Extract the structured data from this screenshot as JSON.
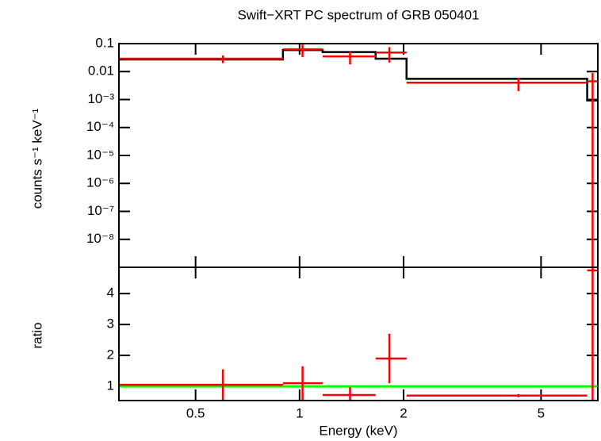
{
  "chart_data": [
    {
      "type": "errorbar",
      "title": "Swift−XRT PC spectrum of GRB 050401",
      "ylabel": "counts s⁻¹ keV⁻¹",
      "xscale": "log",
      "yscale": "log",
      "xlim": [
        0.3,
        7.3
      ],
      "ylim": [
        1e-09,
        0.1
      ],
      "yticks": [
        0.1,
        0.01,
        {
          "value": 0.001,
          "label": "10⁻³"
        },
        {
          "value": 0.0001,
          "label": "10⁻⁴"
        },
        {
          "value": 1e-05,
          "label": "10⁻⁵"
        },
        {
          "value": 1e-06,
          "label": "10⁻⁶"
        },
        {
          "value": 1e-07,
          "label": "10⁻⁷"
        },
        {
          "value": 1e-08,
          "label": "10⁻⁸"
        }
      ],
      "x": [
        0.6,
        1.02,
        1.4,
        1.82,
        4.3,
        7.05
      ],
      "x_low": [
        0.3,
        0.895,
        1.166,
        1.66,
        2.04,
        6.8
      ],
      "x_high": [
        0.895,
        1.166,
        1.66,
        2.04,
        6.8,
        7.3
      ],
      "values": [
        0.029,
        0.063,
        0.035,
        0.048,
        0.004,
        0.0045
      ],
      "errors": [
        0.009,
        0.03,
        0.017,
        0.027,
        0.002,
        0.0045
      ],
      "color": "#ff0000",
      "model": {
        "values": [
          0.027,
          0.059,
          0.05,
          0.029,
          0.0055,
          0.00093
        ],
        "color": "#000000"
      }
    },
    {
      "type": "errorbar",
      "ylabel": "ratio",
      "xlabel": "Energy (keV)",
      "xscale": "log",
      "yscale": "linear",
      "xlim": [
        0.3,
        7.3
      ],
      "ylim": [
        0.54,
        4.85
      ],
      "xticks": [
        0.5,
        1,
        2,
        5
      ],
      "yticks": [
        1,
        2,
        3,
        4
      ],
      "x": [
        0.6,
        1.02,
        1.4,
        1.82,
        4.3,
        7.05
      ],
      "x_low": [
        0.3,
        0.895,
        1.166,
        1.66,
        2.04,
        6.8
      ],
      "x_high": [
        0.895,
        1.166,
        1.66,
        2.04,
        6.8,
        7.3
      ],
      "values": [
        1.05,
        1.1,
        0.72,
        1.9,
        0.7,
        4.75
      ],
      "errors": [
        0.5,
        0.55,
        0.25,
        0.8,
        0.05,
        4.2
      ],
      "color": "#ff0000",
      "reference": {
        "value": 1,
        "color": "#00ff00"
      }
    }
  ]
}
